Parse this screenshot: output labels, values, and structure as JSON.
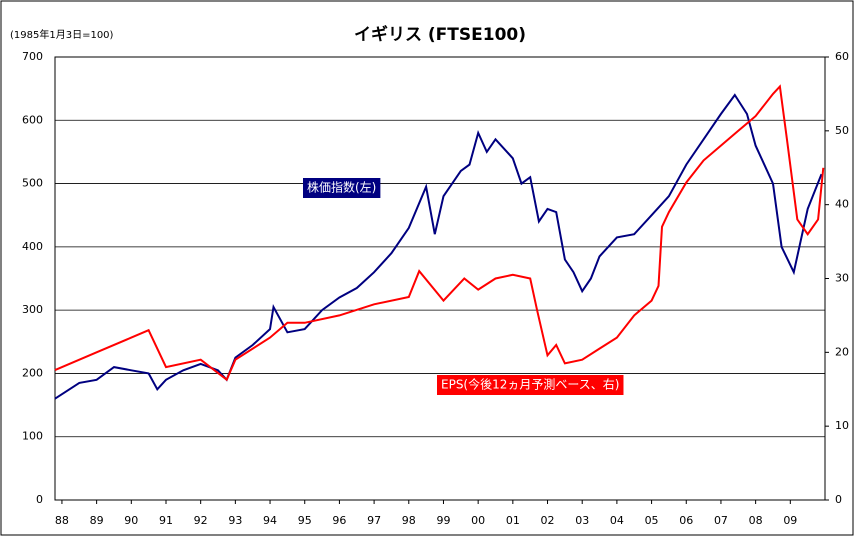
{
  "chart_data": {
    "type": "line",
    "title": "イギリス (FTSE100)",
    "annotation": "(1985年1月3日=100)",
    "xlim": [
      1987.8,
      2010.0
    ],
    "xticks": [
      {
        "value": 1988,
        "label": "88"
      },
      {
        "value": 1989,
        "label": "89"
      },
      {
        "value": 1990,
        "label": "90"
      },
      {
        "value": 1991,
        "label": "91"
      },
      {
        "value": 1992,
        "label": "92"
      },
      {
        "value": 1993,
        "label": "93"
      },
      {
        "value": 1994,
        "label": "94"
      },
      {
        "value": 1995,
        "label": "95"
      },
      {
        "value": 1996,
        "label": "96"
      },
      {
        "value": 1997,
        "label": "97"
      },
      {
        "value": 1998,
        "label": "98"
      },
      {
        "value": 1999,
        "label": "99"
      },
      {
        "value": 2000,
        "label": "00"
      },
      {
        "value": 2001,
        "label": "01"
      },
      {
        "value": 2002,
        "label": "02"
      },
      {
        "value": 2003,
        "label": "03"
      },
      {
        "value": 2004,
        "label": "04"
      },
      {
        "value": 2005,
        "label": "05"
      },
      {
        "value": 2006,
        "label": "06"
      },
      {
        "value": 2007,
        "label": "07"
      },
      {
        "value": 2008,
        "label": "08"
      },
      {
        "value": 2009,
        "label": "09"
      }
    ],
    "ylim": [
      0,
      700
    ],
    "yticks": [
      0,
      100,
      200,
      300,
      400,
      500,
      600,
      700
    ],
    "y2lim": [
      0,
      60
    ],
    "y2ticks": [
      0,
      10,
      20,
      30,
      40,
      50,
      60
    ],
    "grid": true,
    "series": [
      {
        "name": "株価指数(左)",
        "color": "#000080",
        "x": [
          1987.8,
          1988.5,
          1989.0,
          1989.5,
          1990.0,
          1990.5,
          1990.75,
          1991.0,
          1991.5,
          1992.0,
          1992.5,
          1992.75,
          1993.0,
          1993.5,
          1994.0,
          1994.1,
          1994.5,
          1995.0,
          1995.5,
          1996.0,
          1996.5,
          1997.0,
          1997.5,
          1998.0,
          1998.5,
          1998.75,
          1999.0,
          1999.5,
          1999.75,
          2000.0,
          2000.25,
          2000.5,
          2001.0,
          2001.25,
          2001.5,
          2001.75,
          2002.0,
          2002.25,
          2002.5,
          2002.75,
          2003.0,
          2003.25,
          2003.5,
          2004.0,
          2004.5,
          2005.0,
          2005.5,
          2006.0,
          2006.5,
          2007.0,
          2007.4,
          2007.75,
          2008.0,
          2008.5,
          2008.75,
          2009.1,
          2009.5,
          2009.9
        ],
        "values": [
          160,
          185,
          190,
          210,
          205,
          200,
          175,
          190,
          205,
          215,
          205,
          190,
          225,
          245,
          270,
          305,
          265,
          270,
          300,
          320,
          335,
          360,
          390,
          430,
          495,
          420,
          480,
          520,
          530,
          580,
          550,
          570,
          540,
          500,
          510,
          440,
          460,
          455,
          380,
          360,
          330,
          350,
          385,
          415,
          420,
          450,
          480,
          530,
          570,
          610,
          640,
          610,
          560,
          500,
          400,
          360,
          460,
          515
        ]
      },
      {
        "name": "EPS(今後12ヵ月予測ベース、右)",
        "color": "#ff0000",
        "axis": "y2",
        "x": [
          1987.8,
          1989.0,
          1990.0,
          1990.5,
          1991.0,
          1992.0,
          1992.75,
          1993.0,
          1994.0,
          1994.5,
          1995.0,
          1996.0,
          1997.0,
          1998.0,
          1998.3,
          1999.0,
          1999.6,
          2000.0,
          2000.5,
          2001.0,
          2001.5,
          2001.7,
          2002.0,
          2002.25,
          2002.5,
          2003.0,
          2003.5,
          2004.0,
          2004.5,
          2005.0,
          2005.2,
          2005.3,
          2005.5,
          2006.0,
          2006.5,
          2007.0,
          2007.5,
          2008.0,
          2008.5,
          2008.7,
          2008.9,
          2009.2,
          2009.5,
          2009.8,
          2009.95
        ],
        "values": [
          17.6,
          20,
          22,
          23,
          18,
          19,
          16.3,
          19,
          22,
          24,
          24,
          25,
          26.5,
          27.5,
          31,
          27,
          30,
          28.5,
          30,
          30.5,
          30,
          25.7,
          19.6,
          21,
          18.5,
          19,
          20.5,
          22,
          25,
          27,
          29,
          37,
          39,
          43,
          46,
          48,
          50,
          52,
          55,
          56,
          49,
          38,
          36,
          38,
          45
        ]
      }
    ]
  }
}
